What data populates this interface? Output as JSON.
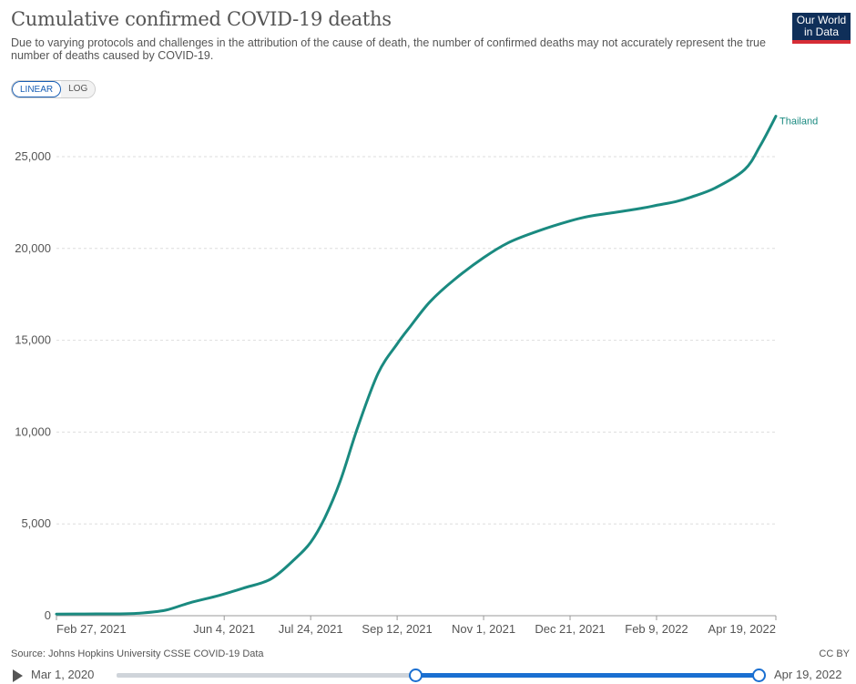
{
  "header": {
    "title": "Cumulative confirmed COVID-19 deaths",
    "subtitle": "Due to varying protocols and challenges in the attribution of the cause of death, the number of confirmed deaths may not accurately represent the true number of deaths caused by COVID-19.",
    "logo_line1": "Our World",
    "logo_line2": "in Data"
  },
  "scale_toggle": {
    "linear_label": "LINEAR",
    "log_label": "LOG",
    "active": "LINEAR"
  },
  "footer": {
    "source": "Source: Johns Hopkins University CSSE COVID-19 Data",
    "license": "CC BY"
  },
  "timeline": {
    "start_label": "Mar 1, 2020",
    "end_label": "Apr 19, 2022"
  },
  "colors": {
    "series": "#1a8a80",
    "grid": "#dddddd",
    "text": "#555555",
    "timeline_accent": "#1a6fd1"
  },
  "chart_data": {
    "type": "line",
    "title": "Cumulative confirmed COVID-19 deaths",
    "xlabel": "",
    "ylabel": "",
    "ylim": [
      0,
      27500
    ],
    "yticks": [
      0,
      5000,
      10000,
      15000,
      20000,
      25000
    ],
    "ytick_labels": [
      "0",
      "5,000",
      "10,000",
      "15,000",
      "20,000",
      "25,000"
    ],
    "xlim": [
      "2021-02-27",
      "2022-04-19"
    ],
    "xtick_labels": [
      "Feb 27, 2021",
      "Jun 4, 2021",
      "Jul 24, 2021",
      "Sep 12, 2021",
      "Nov 1, 2021",
      "Dec 21, 2021",
      "Feb 9, 2022",
      "Apr 19, 2022"
    ],
    "xtick_dates": [
      "2021-02-27",
      "2021-06-04",
      "2021-07-24",
      "2021-09-12",
      "2021-11-01",
      "2021-12-21",
      "2022-02-09",
      "2022-04-19"
    ],
    "grid": true,
    "series": [
      {
        "name": "Thailand",
        "x": [
          "2021-02-27",
          "2021-03-15",
          "2021-04-01",
          "2021-04-15",
          "2021-05-01",
          "2021-05-15",
          "2021-06-01",
          "2021-06-15",
          "2021-07-01",
          "2021-07-15",
          "2021-07-24",
          "2021-08-01",
          "2021-08-10",
          "2021-08-20",
          "2021-09-01",
          "2021-09-12",
          "2021-09-20",
          "2021-10-01",
          "2021-10-15",
          "2021-11-01",
          "2021-11-15",
          "2021-12-01",
          "2021-12-21",
          "2022-01-01",
          "2022-01-15",
          "2022-02-01",
          "2022-02-09",
          "2022-02-20",
          "2022-03-01",
          "2022-03-15",
          "2022-04-01",
          "2022-04-10",
          "2022-04-19"
        ],
        "y": [
          85,
          95,
          100,
          130,
          300,
          700,
          1100,
          1500,
          2000,
          3100,
          4000,
          5300,
          7300,
          10200,
          13200,
          14800,
          15800,
          17100,
          18300,
          19500,
          20300,
          20900,
          21500,
          21750,
          21950,
          22200,
          22350,
          22550,
          22800,
          23300,
          24300,
          25600,
          27200
        ]
      }
    ]
  }
}
